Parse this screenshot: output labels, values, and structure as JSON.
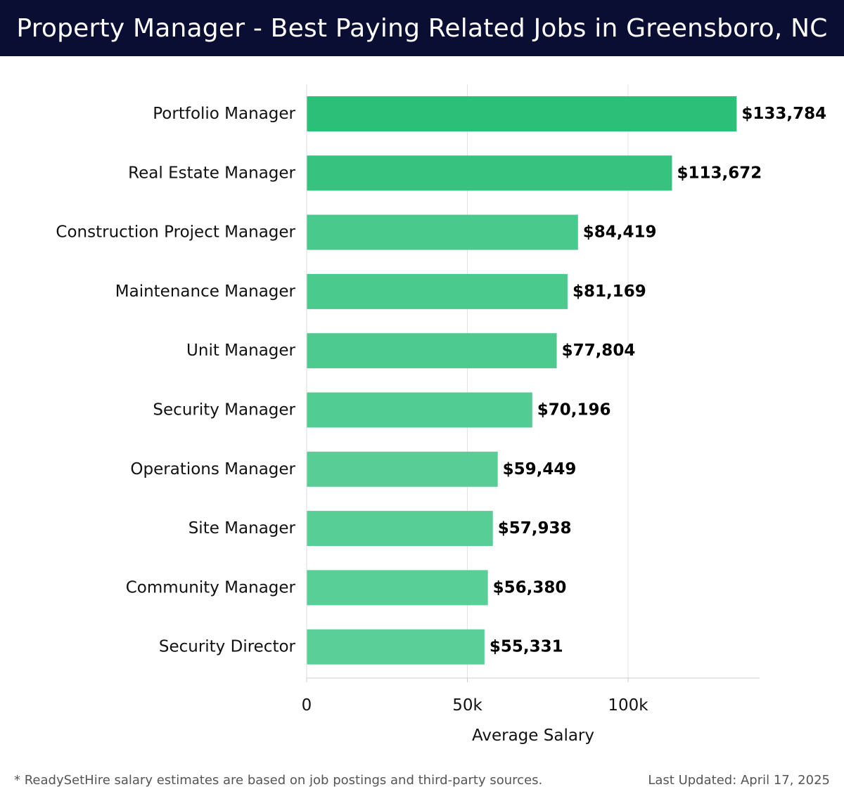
{
  "header": {
    "title": "Property Manager - Best Paying Related Jobs in Greensboro, NC"
  },
  "footer": {
    "note": "* ReadySetHire salary estimates are based on job postings and third-party sources.",
    "last_updated": "Last Updated: April 17, 2025"
  },
  "colors": {
    "header_bg": "#0b0e33",
    "bar_dark": "#2bbf77",
    "bar_light": "#5acf98"
  },
  "chart_data": {
    "type": "bar",
    "orientation": "horizontal",
    "title": "Property Manager - Best Paying Related Jobs in Greensboro, NC",
    "xlabel": "Average Salary",
    "ylabel": "",
    "xlim": [
      0,
      140000
    ],
    "x_ticks": [
      0,
      50000,
      100000
    ],
    "x_tick_labels": [
      "0",
      "50k",
      "100k"
    ],
    "grid": true,
    "categories": [
      "Portfolio Manager",
      "Real Estate Manager",
      "Construction Project Manager",
      "Maintenance Manager",
      "Unit Manager",
      "Security Manager",
      "Operations Manager",
      "Site Manager",
      "Community Manager",
      "Security Director"
    ],
    "values": [
      133784,
      113672,
      84419,
      81169,
      77804,
      70196,
      59449,
      57938,
      56380,
      55331
    ],
    "value_labels": [
      "$133,784",
      "$113,672",
      "$84,419",
      "$81,169",
      "$77,804",
      "$70,196",
      "$59,449",
      "$57,938",
      "$56,380",
      "$55,331"
    ]
  }
}
